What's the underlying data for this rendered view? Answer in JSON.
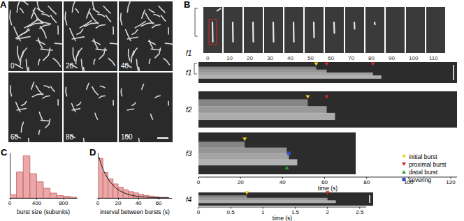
{
  "panels": {
    "A": {
      "label": "A",
      "frame_times": [
        0,
        20,
        40,
        60,
        80,
        100
      ]
    },
    "B": {
      "label": "B",
      "film_strip": {
        "name": "f1",
        "frame_times": [
          0,
          10,
          20,
          30,
          40,
          50,
          60,
          70,
          80,
          90,
          100,
          110
        ]
      },
      "kymograph_groups": [
        {
          "xlim": [
            0,
            123
          ],
          "xticks": [
            0,
            20,
            40,
            60,
            80,
            100,
            120
          ],
          "xlabel": "time (s)",
          "kymographs": [
            {
              "name": "f1",
              "bursts": [
                {
                  "kind": "initial",
                  "time": 56
                },
                {
                  "kind": "proximal",
                  "time": 61
                },
                {
                  "kind": "proximal",
                  "time": 83
                }
              ]
            },
            {
              "name": "f2",
              "bursts": [
                {
                  "kind": "initial",
                  "time": 52
                },
                {
                  "kind": "proximal",
                  "time": 61
                }
              ]
            },
            {
              "name": "f3",
              "bursts": [
                {
                  "kind": "initial",
                  "time": 22
                },
                {
                  "kind": "distal",
                  "time": 42
                },
                {
                  "kind": "severing",
                  "time": 43
                }
              ]
            }
          ]
        },
        {
          "xlim": [
            0,
            2.6
          ],
          "xticks": [
            0,
            0.5,
            1,
            1.5,
            2,
            2.5
          ],
          "xlabel": "time (s)",
          "kymographs": [
            {
              "name": "f4",
              "bursts": [
                {
                  "kind": "initial",
                  "time": 0.75
                },
                {
                  "kind": "proximal",
                  "time": 2.0
                }
              ]
            }
          ]
        }
      ],
      "legend": [
        {
          "kind": "initial",
          "label": "initial burst",
          "color": "#f2d21b"
        },
        {
          "kind": "proximal",
          "label": "proximal burst",
          "color": "#d42a2a"
        },
        {
          "kind": "distal",
          "label": "distal burst",
          "color": "#2f9e3a"
        },
        {
          "kind": "severing",
          "label": "severing",
          "color": "#2f4fbf"
        }
      ]
    }
  },
  "chart_data": [
    {
      "type": "histogram",
      "label": "C",
      "xlabel": "burst size (subunits)",
      "bins": [
        0,
        100,
        200,
        300,
        400,
        500,
        600,
        700,
        800,
        900,
        1000
      ],
      "counts": [
        4,
        32,
        52,
        30,
        20,
        12,
        6,
        3,
        2,
        1
      ],
      "xlim": [
        0,
        1000
      ],
      "xticks": [
        0,
        400,
        800
      ],
      "ylim": [
        0,
        55
      ],
      "yticks": [],
      "tick_labels": "x",
      "grid": false,
      "color": "#eba8a8"
    },
    {
      "type": "histogram",
      "label": "D",
      "xlabel": "interval between bursts (s)",
      "bins": [
        0,
        5,
        10,
        15,
        20,
        25,
        30,
        35,
        40,
        45,
        50,
        55,
        60,
        65,
        70
      ],
      "counts": [
        62,
        40,
        30,
        22,
        17,
        13,
        10,
        8,
        6,
        4,
        3,
        2,
        1,
        1
      ],
      "xlim": [
        0,
        73
      ],
      "xticks": [
        0,
        20,
        40,
        60
      ],
      "ylim": [
        0,
        70
      ],
      "yticks": [],
      "tick_labels": "x",
      "grid": false,
      "color": "#eba8a8",
      "fit": {
        "x": [
          1,
          5,
          10,
          15,
          20,
          25,
          30,
          35,
          40,
          50,
          60,
          70
        ],
        "values": [
          64.4,
          46.0,
          30.4,
          20.0,
          13.2,
          8.7,
          5.7,
          3.8,
          2.5,
          1.1,
          0.5,
          0.2
        ],
        "color": "#111111"
      }
    }
  ]
}
